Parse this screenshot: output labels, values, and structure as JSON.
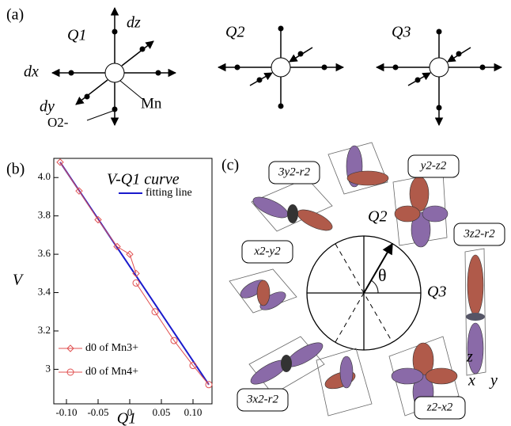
{
  "figure_a": {
    "panel": "(a)",
    "q1": "Q1",
    "q2": "Q2",
    "q3": "Q3",
    "dz": "dz",
    "dx": "dx",
    "dy": "dy",
    "oxygen": "O2-",
    "mn": "Mn"
  },
  "figure_c": {
    "panel": "(c)",
    "orbitals": [
      "3y2-r2",
      "y2-z2",
      "3z2-r2",
      "x2-y2",
      "3x2-r2",
      "z2-x2"
    ],
    "q2": "Q2",
    "q3": "Q3",
    "theta": "θ",
    "z": "z",
    "x": "x",
    "y": "y"
  },
  "chart_data": {
    "type": "line",
    "panel": "(b)",
    "annotation": "V-Q1 curve",
    "xlabel": "Q1",
    "ylabel": "V",
    "xlim": [
      -0.12,
      0.13
    ],
    "ylim": [
      2.82,
      4.1
    ],
    "xticks": [
      {
        "value": -0.1,
        "label": "-0.10"
      },
      -0.05,
      0,
      0.05,
      {
        "value": 0.1,
        "label": "0.10"
      }
    ],
    "yticks": [
      3.0,
      3.2,
      3.4,
      3.6,
      3.8,
      {
        "value": 4.0,
        "label": "4.0"
      }
    ],
    "series": [
      {
        "name": "fitting line",
        "color": "#1a1acc",
        "marker": "none",
        "x": [
          -0.11,
          0.125
        ],
        "values": [
          4.08,
          2.92
        ]
      },
      {
        "name": "d0 of Mn3+",
        "color": "#e05050",
        "marker": "diamond",
        "x": [
          -0.11,
          -0.08,
          -0.05,
          -0.02,
          0,
          0.01
        ],
        "values": [
          4.08,
          3.93,
          3.78,
          3.64,
          3.6,
          3.5
        ]
      },
      {
        "name": "d0 of Mn4+",
        "color": "#e05050",
        "marker": "circle",
        "x": [
          0.01,
          0.04,
          0.07,
          0.1,
          0.125
        ],
        "values": [
          3.45,
          3.3,
          3.15,
          3.02,
          2.92
        ]
      }
    ]
  }
}
